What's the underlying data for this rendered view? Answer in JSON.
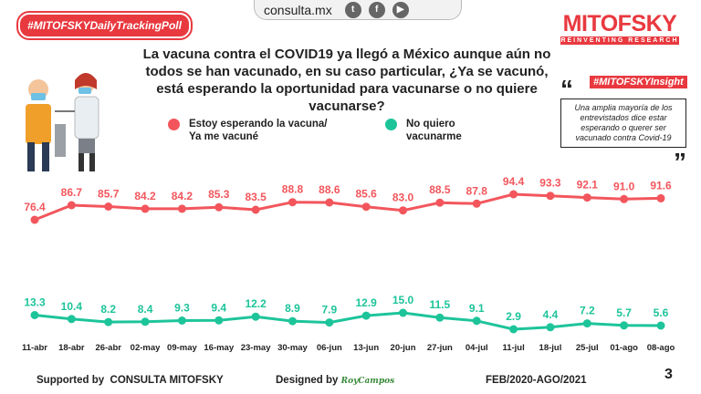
{
  "header": {
    "site": "consulta.mx",
    "social_icons": [
      "twitter-icon",
      "facebook-icon",
      "youtube-icon"
    ],
    "hashtag": "#MITOFSKYDailyTrackingPoll",
    "brand_name": "MITOFSKY",
    "brand_tagline": "REINVENTING RESEARCH"
  },
  "question": "La vacuna contra el COVID19 ya llegó a México aunque aún no todos se han vacunado, en su caso particular, ¿Ya se vacunó, está esperando la oportunidad para vacunarse o no quiere vacunarse?",
  "insight": {
    "tag": "#MITOFSKYInsight",
    "text": "Una amplia mayoría de los entrevistados dice estar esperando o querer ser vacunado contra Covid-19"
  },
  "colors": {
    "accent": "#e8393f",
    "series1": "#f2565c",
    "series2": "#1dc49a"
  },
  "chart_data": {
    "type": "line",
    "categories": [
      "11-abr",
      "18-abr",
      "26-abr",
      "02-may",
      "09-may",
      "16-may",
      "23-may",
      "30-may",
      "06-jun",
      "13-jun",
      "20-jun",
      "27-jun",
      "04-jul",
      "11-jul",
      "18-jul",
      "25-jul",
      "01-ago",
      "08-ago"
    ],
    "series": [
      {
        "name": "Estoy esperando la vacuna/ Ya me vacuné",
        "values": [
          76.4,
          86.7,
          85.7,
          84.2,
          84.2,
          85.3,
          83.5,
          88.8,
          88.6,
          85.6,
          83.0,
          88.5,
          87.8,
          94.4,
          93.3,
          92.1,
          91.0,
          91.6
        ]
      },
      {
        "name": "No quiero vacunarme",
        "values": [
          13.3,
          10.4,
          8.2,
          8.4,
          9.3,
          9.4,
          12.2,
          8.9,
          7.9,
          12.9,
          15.0,
          11.5,
          9.1,
          2.9,
          4.4,
          7.2,
          5.7,
          5.6
        ]
      }
    ],
    "legend": {
      "s1_line1": "Estoy esperando la vacuna/",
      "s1_line2": "Ya me vacuné",
      "s2_line1": "No quiero",
      "s2_line2": "vacunarme"
    }
  },
  "footer": {
    "supported_prefix": "Supported by",
    "supported_name": "CONSULTA  MITOFSKY",
    "designed_prefix": "Designed by",
    "designed_name": "RoyCampos",
    "period": "FEB/2020-AGO/2021",
    "page": "3"
  }
}
